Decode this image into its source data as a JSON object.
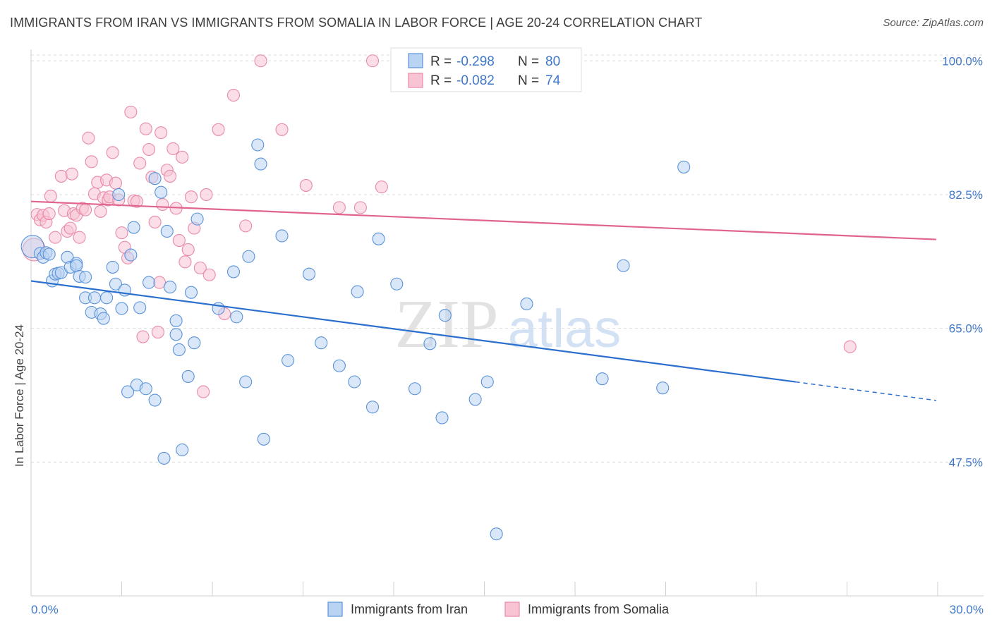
{
  "header": {
    "title": "IMMIGRANTS FROM IRAN VS IMMIGRANTS FROM SOMALIA IN LABOR FORCE | AGE 20-24 CORRELATION CHART",
    "source": "Source: ZipAtlas.com"
  },
  "watermark": {
    "zip": "ZIP",
    "atlas": "atlas"
  },
  "colors": {
    "iran_fill": "#b9d3f3",
    "iran_stroke": "#5b93d9",
    "iran_line": "#2b6fce",
    "somalia_fill": "#f8c3d3",
    "somalia_stroke": "#e88aa8",
    "somalia_line": "#e0658d",
    "tick_label": "#3f78c8",
    "grid": "#dddddd"
  },
  "chart_data": {
    "type": "scatter",
    "title": "IMMIGRANTS FROM IRAN VS IMMIGRANTS FROM SOMALIA IN LABOR FORCE | AGE 20-24 CORRELATION CHART",
    "xlabel": "",
    "ylabel": "In Labor Force | Age 20-24",
    "xlim": [
      0,
      30
    ],
    "ylim": [
      30,
      101.5
    ],
    "x_tick_labels": [
      "0.0%",
      "30.0%"
    ],
    "y_ticks": [
      100.0,
      82.5,
      65.0,
      47.5
    ],
    "y_tick_labels": [
      "100.0%",
      "82.5%",
      "65.0%",
      "47.5%"
    ],
    "legend": {
      "position": "top-center",
      "entries": [
        {
          "r_label": "R =",
          "r_value": "-0.298",
          "n_label": "N =",
          "n_value": "80"
        },
        {
          "r_label": "R =",
          "r_value": "-0.082",
          "n_label": "N =",
          "n_value": "74"
        }
      ]
    },
    "bottom_legend": [
      "Immigrants from Iran",
      "Immigrants from Somalia"
    ],
    "series": [
      {
        "name": "Immigrants from Iran",
        "trend": {
          "x_solid": [
            0,
            25.3
          ],
          "x_dashed": [
            25.3,
            29.95
          ],
          "y_at_x0": 71.2,
          "slope": -0.522
        },
        "points": [
          [
            0.05,
            75.7
          ],
          [
            0.3,
            74.8
          ],
          [
            0.4,
            74.3
          ],
          [
            0.5,
            74.9
          ],
          [
            0.6,
            74.7
          ],
          [
            0.7,
            71.2
          ],
          [
            0.8,
            72.1
          ],
          [
            0.9,
            72.2
          ],
          [
            1.0,
            72.3
          ],
          [
            1.2,
            74.3
          ],
          [
            1.3,
            73.0
          ],
          [
            1.5,
            73.5
          ],
          [
            1.5,
            73.2
          ],
          [
            1.6,
            71.8
          ],
          [
            1.8,
            71.7
          ],
          [
            1.8,
            69.0
          ],
          [
            2.0,
            67.1
          ],
          [
            2.1,
            69.0
          ],
          [
            2.3,
            66.9
          ],
          [
            2.4,
            66.3
          ],
          [
            2.5,
            69.0
          ],
          [
            2.7,
            73.0
          ],
          [
            2.8,
            70.8
          ],
          [
            2.9,
            82.5
          ],
          [
            3.0,
            67.6
          ],
          [
            3.1,
            70.0
          ],
          [
            3.2,
            56.7
          ],
          [
            3.3,
            74.6
          ],
          [
            3.4,
            78.2
          ],
          [
            3.5,
            57.6
          ],
          [
            3.6,
            67.7
          ],
          [
            3.8,
            57.1
          ],
          [
            3.9,
            71.0
          ],
          [
            4.1,
            55.6
          ],
          [
            4.1,
            84.6
          ],
          [
            4.3,
            82.8
          ],
          [
            4.4,
            48.0
          ],
          [
            4.5,
            77.7
          ],
          [
            4.6,
            70.4
          ],
          [
            4.8,
            64.2
          ],
          [
            4.8,
            66.0
          ],
          [
            4.9,
            62.2
          ],
          [
            5.0,
            49.1
          ],
          [
            5.2,
            58.7
          ],
          [
            5.3,
            69.7
          ],
          [
            5.4,
            63.1
          ],
          [
            5.5,
            79.3
          ],
          [
            6.2,
            67.6
          ],
          [
            6.7,
            72.4
          ],
          [
            6.8,
            66.5
          ],
          [
            7.1,
            58.0
          ],
          [
            7.2,
            74.4
          ],
          [
            7.5,
            89.0
          ],
          [
            7.6,
            86.5
          ],
          [
            7.7,
            50.5
          ],
          [
            8.3,
            77.1
          ],
          [
            8.5,
            60.8
          ],
          [
            9.2,
            72.1
          ],
          [
            9.6,
            63.1
          ],
          [
            10.2,
            60.1
          ],
          [
            10.7,
            58.0
          ],
          [
            10.8,
            69.8
          ],
          [
            11.3,
            54.7
          ],
          [
            11.5,
            76.7
          ],
          [
            12.1,
            70.8
          ],
          [
            12.7,
            57.1
          ],
          [
            13.2,
            63.0
          ],
          [
            13.6,
            53.3
          ],
          [
            13.7,
            66.7
          ],
          [
            14.7,
            55.7
          ],
          [
            15.1,
            58.0
          ],
          [
            16.4,
            68.2
          ],
          [
            18.9,
            58.4
          ],
          [
            19.6,
            73.2
          ],
          [
            20.9,
            57.2
          ],
          [
            21.6,
            86.1
          ],
          [
            15.4,
            38.1
          ]
        ]
      },
      {
        "name": "Immigrants from Somalia",
        "trend": {
          "x_solid": [
            0,
            29.95
          ],
          "y_at_x0": 81.6,
          "slope": -0.166
        },
        "points": [
          [
            0.1,
            75.3
          ],
          [
            0.2,
            79.9
          ],
          [
            0.3,
            79.2
          ],
          [
            0.4,
            79.8
          ],
          [
            0.5,
            78.9
          ],
          [
            0.6,
            80.0
          ],
          [
            0.65,
            82.3
          ],
          [
            0.8,
            76.9
          ],
          [
            1.0,
            84.9
          ],
          [
            1.1,
            80.4
          ],
          [
            1.2,
            77.7
          ],
          [
            1.3,
            78.1
          ],
          [
            1.35,
            85.2
          ],
          [
            1.4,
            80.0
          ],
          [
            1.5,
            79.8
          ],
          [
            1.6,
            76.9
          ],
          [
            1.7,
            80.7
          ],
          [
            1.8,
            80.5
          ],
          [
            1.9,
            89.9
          ],
          [
            2.0,
            86.8
          ],
          [
            2.1,
            82.6
          ],
          [
            2.2,
            84.1
          ],
          [
            2.3,
            80.3
          ],
          [
            2.4,
            82.1
          ],
          [
            2.5,
            84.4
          ],
          [
            2.55,
            81.8
          ],
          [
            2.6,
            82.2
          ],
          [
            2.7,
            88.0
          ],
          [
            2.8,
            84.0
          ],
          [
            2.9,
            81.8
          ],
          [
            3.0,
            77.5
          ],
          [
            3.1,
            75.6
          ],
          [
            3.2,
            74.2
          ],
          [
            3.3,
            93.3
          ],
          [
            3.4,
            81.7
          ],
          [
            3.5,
            81.6
          ],
          [
            3.6,
            86.6
          ],
          [
            3.7,
            63.9
          ],
          [
            3.8,
            91.1
          ],
          [
            3.9,
            88.4
          ],
          [
            4.0,
            84.8
          ],
          [
            4.1,
            78.9
          ],
          [
            4.2,
            64.5
          ],
          [
            4.25,
            71.0
          ],
          [
            4.3,
            90.6
          ],
          [
            4.35,
            81.2
          ],
          [
            4.5,
            85.7
          ],
          [
            4.6,
            84.9
          ],
          [
            4.7,
            88.5
          ],
          [
            4.8,
            80.7
          ],
          [
            4.9,
            76.5
          ],
          [
            5.0,
            87.4
          ],
          [
            5.1,
            73.7
          ],
          [
            5.2,
            75.3
          ],
          [
            5.3,
            82.2
          ],
          [
            5.4,
            78.1
          ],
          [
            5.6,
            72.9
          ],
          [
            5.7,
            56.7
          ],
          [
            5.8,
            82.5
          ],
          [
            5.9,
            72.0
          ],
          [
            6.2,
            91.0
          ],
          [
            6.4,
            66.9
          ],
          [
            6.7,
            95.5
          ],
          [
            7.1,
            78.4
          ],
          [
            7.6,
            100.0
          ],
          [
            8.3,
            91.0
          ],
          [
            9.1,
            83.7
          ],
          [
            10.2,
            80.8
          ],
          [
            10.9,
            80.8
          ],
          [
            11.3,
            100.0
          ],
          [
            11.6,
            83.5
          ],
          [
            27.1,
            62.6
          ]
        ]
      }
    ]
  }
}
